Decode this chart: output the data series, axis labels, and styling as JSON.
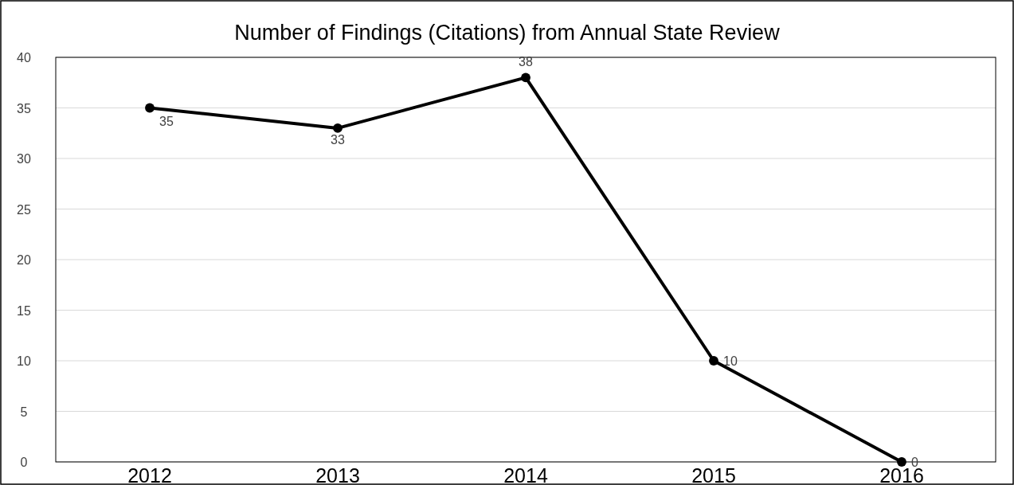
{
  "chart_data": {
    "type": "line",
    "title": "Number of Findings (Citations) from Annual State Review",
    "categories": [
      "2012",
      "2013",
      "2014",
      "2015",
      "2016"
    ],
    "series": [
      {
        "color": "#000000",
        "values": [
          35,
          33,
          38,
          10,
          0
        ]
      }
    ],
    "ylim": [
      0,
      40
    ],
    "yticks": [
      0,
      5,
      10,
      15,
      20,
      25,
      30,
      35,
      40
    ],
    "grid": "y",
    "marker": "circle",
    "data_labels": true
  }
}
